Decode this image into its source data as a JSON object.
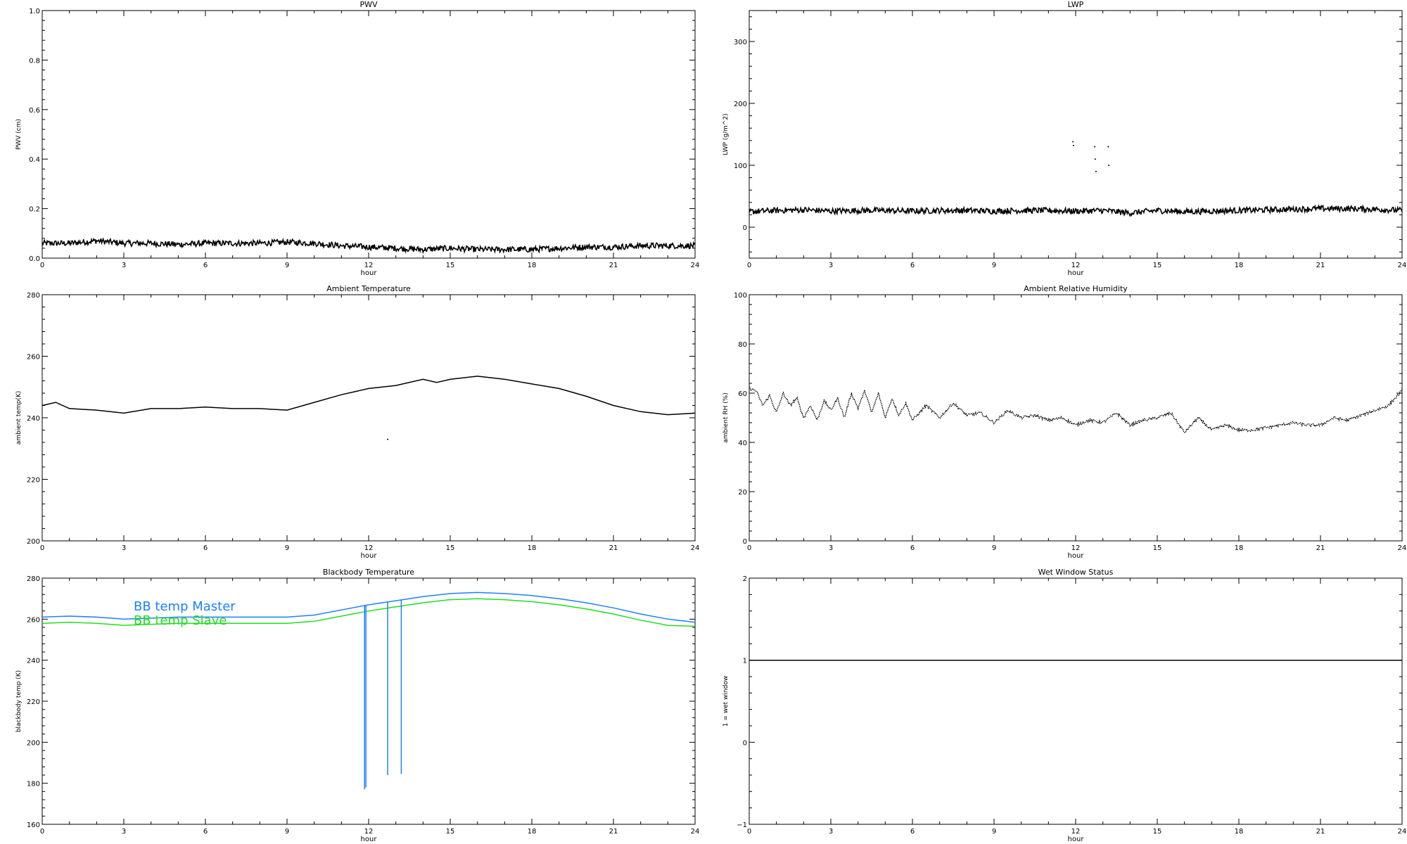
{
  "chart_data": [
    {
      "type": "line",
      "title": "PWV",
      "xlabel": "hour",
      "ylabel": "PWV (cm)",
      "xlim": [
        0,
        24
      ],
      "ylim": [
        0,
        1.0
      ],
      "xticks": [
        "0",
        "3",
        "6",
        "9",
        "12",
        "15",
        "18",
        "21",
        "24"
      ],
      "yticks": [
        "0.0",
        "0.2",
        "0.4",
        "0.6",
        "0.8",
        "1.0"
      ],
      "series": [
        {
          "color": "#000000",
          "style": "noisy",
          "x": [
            0,
            1,
            2,
            3,
            4,
            5,
            6,
            7,
            8,
            9,
            10,
            11,
            12,
            13,
            14,
            15,
            16,
            17,
            18,
            19,
            20,
            21,
            22,
            23,
            24
          ],
          "y": [
            0.06,
            0.06,
            0.07,
            0.06,
            0.06,
            0.055,
            0.06,
            0.06,
            0.06,
            0.065,
            0.06,
            0.05,
            0.045,
            0.04,
            0.035,
            0.04,
            0.035,
            0.035,
            0.035,
            0.04,
            0.045,
            0.045,
            0.05,
            0.05,
            0.05
          ]
        }
      ]
    },
    {
      "type": "line",
      "title": "LWP",
      "xlabel": "hour",
      "ylabel": "LWP (g/m^2)",
      "xlim": [
        0,
        24
      ],
      "ylim": [
        -50,
        350
      ],
      "xticks": [
        "0",
        "3",
        "6",
        "9",
        "12",
        "15",
        "18",
        "21",
        "24"
      ],
      "yticks": [
        "0",
        "100",
        "200",
        "300"
      ],
      "series": [
        {
          "color": "#000000",
          "style": "noisy",
          "x": [
            0,
            1,
            2,
            3,
            4,
            5,
            6,
            7,
            8,
            9,
            10,
            11,
            12,
            13,
            14,
            15,
            16,
            17,
            18,
            19,
            20,
            21,
            22,
            23,
            24
          ],
          "y": [
            25,
            27,
            28,
            26,
            27,
            27,
            26,
            27,
            27,
            26,
            27,
            27,
            26,
            27,
            23,
            27,
            25,
            26,
            27,
            28,
            29,
            30,
            30,
            29,
            27
          ]
        },
        {
          "color": "#000000",
          "style": "points",
          "x": [
            11.9,
            11.92,
            12.7,
            12.72,
            12.75,
            13.2,
            13.22
          ],
          "y": [
            138,
            132,
            130,
            110,
            90,
            130,
            100
          ]
        }
      ]
    },
    {
      "type": "line",
      "title": "Ambient Temperature",
      "xlabel": "hour",
      "ylabel": "ambient temp(K)",
      "xlim": [
        0,
        24
      ],
      "ylim": [
        200,
        280
      ],
      "xticks": [
        "0",
        "3",
        "6",
        "9",
        "12",
        "15",
        "18",
        "21",
        "24"
      ],
      "yticks": [
        "200",
        "220",
        "240",
        "260",
        "280"
      ],
      "series": [
        {
          "color": "#000000",
          "style": "line",
          "x": [
            0,
            0.5,
            1,
            2,
            3,
            4,
            5,
            6,
            7,
            8,
            9,
            10,
            11,
            12,
            13,
            14,
            14.5,
            15,
            16,
            17,
            18,
            19,
            20,
            21,
            22,
            23,
            24
          ],
          "y": [
            244,
            245,
            243,
            242.5,
            241.5,
            243,
            243,
            243.5,
            243,
            243,
            242.5,
            245,
            247.5,
            249.5,
            250.5,
            252.5,
            251.5,
            252.5,
            253.5,
            252.5,
            251,
            249.5,
            247,
            244,
            242,
            241,
            241.5
          ]
        },
        {
          "color": "#000000",
          "style": "points",
          "x": [
            12.7
          ],
          "y": [
            233
          ]
        }
      ]
    },
    {
      "type": "line",
      "title": "Ambient Relative Humidity",
      "xlabel": "hour",
      "ylabel": "ambient RH (%)",
      "xlim": [
        0,
        24
      ],
      "ylim": [
        0,
        100
      ],
      "xticks": [
        "0",
        "3",
        "6",
        "9",
        "12",
        "15",
        "18",
        "21",
        "24"
      ],
      "yticks": [
        "0",
        "20",
        "40",
        "60",
        "80",
        "100"
      ],
      "series": [
        {
          "color": "#000000",
          "style": "dotted",
          "x": [
            0,
            0.25,
            0.5,
            0.75,
            1,
            1.25,
            1.5,
            1.75,
            2,
            2.25,
            2.5,
            2.75,
            3,
            3.25,
            3.5,
            3.75,
            4,
            4.25,
            4.5,
            4.75,
            5,
            5.25,
            5.5,
            5.75,
            6,
            6.5,
            7,
            7.5,
            8,
            8.5,
            9,
            9.5,
            10,
            10.5,
            11,
            11.5,
            12,
            12.5,
            13,
            13.5,
            14,
            14.5,
            15,
            15.5,
            16,
            16.5,
            17,
            17.5,
            18,
            18.5,
            19,
            19.5,
            20,
            20.5,
            21,
            21.5,
            22,
            22.5,
            23,
            23.5,
            24
          ],
          "y": [
            62,
            61,
            55,
            59,
            52,
            60,
            55,
            58,
            50,
            55,
            49,
            57,
            53,
            58,
            50,
            60,
            54,
            61,
            52,
            60,
            50,
            58,
            51,
            56,
            49,
            55,
            50,
            56,
            51,
            52,
            48,
            53,
            50,
            51,
            49,
            50,
            47,
            49,
            48,
            52,
            47,
            49,
            50,
            52,
            44,
            50,
            45,
            47,
            45,
            45,
            46,
            47,
            48,
            47,
            47,
            50,
            49,
            51,
            53,
            55,
            61
          ]
        }
      ]
    },
    {
      "type": "line",
      "title": "Blackbody Temperature",
      "xlabel": "hour",
      "ylabel": "blackbody temp (K)",
      "xlim": [
        0,
        24
      ],
      "ylim": [
        160,
        280
      ],
      "xticks": [
        "0",
        "3",
        "6",
        "9",
        "12",
        "15",
        "18",
        "21",
        "24"
      ],
      "yticks": [
        "160",
        "180",
        "200",
        "220",
        "240",
        "260",
        "280"
      ],
      "legend": {
        "position": "top-left",
        "entries": [
          {
            "label": "BB temp Master",
            "color": "#1f7fff"
          },
          {
            "label": "BB temp Slave",
            "color": "#22dd22"
          }
        ]
      },
      "series": [
        {
          "name": "BB temp Master",
          "color": "#1f7fff",
          "style": "line",
          "x": [
            0,
            1,
            2,
            3,
            4,
            5,
            6,
            7,
            8,
            9,
            10,
            11,
            12,
            13,
            14,
            15,
            16,
            17,
            18,
            19,
            20,
            21,
            22,
            23,
            24
          ],
          "y": [
            261,
            261.5,
            261,
            260,
            260.5,
            261,
            261,
            261,
            261,
            261,
            262,
            264.5,
            267,
            269,
            271,
            272.5,
            273,
            272.5,
            271.5,
            270,
            268,
            265.5,
            262.5,
            260,
            258.5
          ]
        },
        {
          "name": "BB temp Slave",
          "color": "#22dd22",
          "style": "line",
          "x": [
            0,
            1,
            2,
            3,
            4,
            5,
            6,
            7,
            8,
            9,
            10,
            11,
            12,
            13,
            14,
            15,
            16,
            17,
            18,
            19,
            20,
            21,
            22,
            23,
            24
          ],
          "y": [
            258,
            258.5,
            258,
            257,
            257.5,
            258,
            258,
            258,
            258,
            258,
            259,
            261.5,
            264,
            266,
            268,
            269.5,
            270,
            269.5,
            268.5,
            267,
            265,
            262.5,
            259.5,
            257,
            256.5
          ]
        },
        {
          "name": "BB temp Master",
          "color": "#1f7fff",
          "style": "spikes",
          "x": [
            11.85,
            11.9,
            12.7,
            13.2
          ],
          "y": [
            177,
            178,
            184,
            184.5
          ]
        }
      ]
    },
    {
      "type": "line",
      "title": "Wet Window Status",
      "xlabel": "hour",
      "ylabel": "1 = wet window",
      "xlim": [
        0,
        24
      ],
      "ylim": [
        -1,
        2
      ],
      "xticks": [
        "0",
        "3",
        "6",
        "9",
        "12",
        "15",
        "18",
        "21",
        "24"
      ],
      "yticks": [
        "−1",
        "0",
        "1",
        "2"
      ],
      "series": [
        {
          "color": "#000000",
          "style": "line",
          "x": [
            0,
            24
          ],
          "y": [
            1,
            1
          ]
        }
      ]
    }
  ]
}
